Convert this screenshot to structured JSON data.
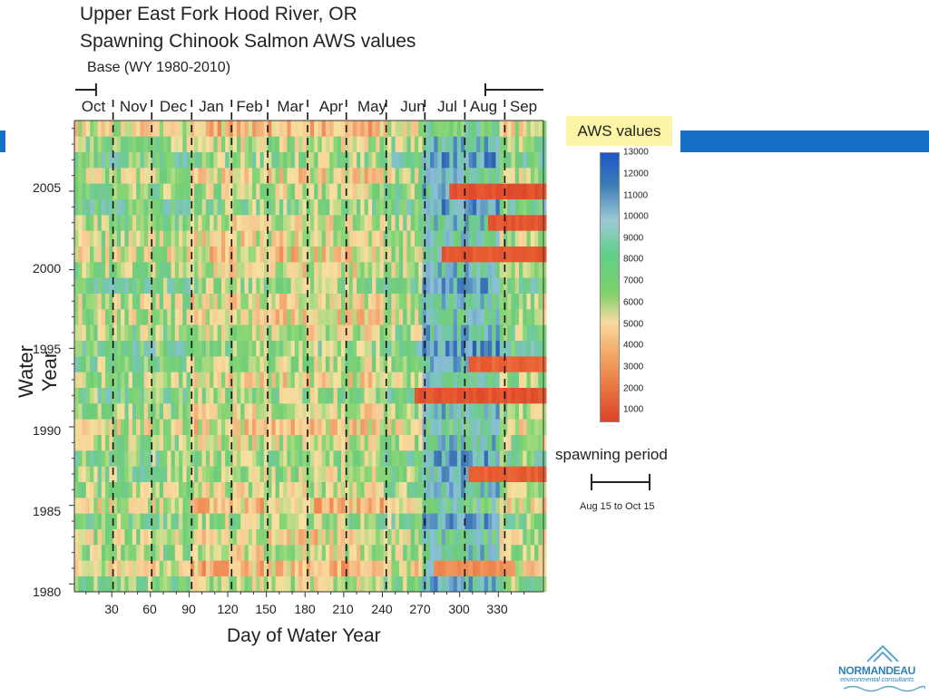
{
  "title_line1": "Upper East Fork Hood River, OR",
  "title_line2": "Spawning Chinook Salmon AWS values",
  "base_label": "Base (WY 1980-2010)",
  "months": [
    "Oct",
    "Nov",
    "Dec",
    "Jan",
    "Feb",
    "Mar",
    "Apr",
    "May",
    "Jun",
    "Jul",
    "Aug",
    "Sep"
  ],
  "colorbar": {
    "title": "AWS values",
    "ticks": [
      "13000",
      "12000",
      "11000",
      "10000",
      "9000",
      "8000",
      "7000",
      "6000",
      "5000",
      "4000",
      "3000",
      "2000",
      "1000"
    ]
  },
  "legend": {
    "label": "spawning period",
    "range": "Aug 15 to Oct 15"
  },
  "logo": {
    "name": "NORMANDEAU",
    "sub": "environmental consultants"
  },
  "colors": {
    "accent_bar": "#1670c9",
    "aws_title_bg": "#fdf5a6"
  },
  "chart_data": {
    "type": "heatmap",
    "xlabel": "Day of Water Year",
    "ylabel": "Water Year",
    "x_ticks": [
      30,
      60,
      90,
      120,
      150,
      180,
      210,
      240,
      270,
      300,
      330
    ],
    "y_ticks": [
      1980,
      1985,
      1990,
      1995,
      2000,
      2005
    ],
    "x_range": [
      1,
      365
    ],
    "y_range": [
      1980,
      2009
    ],
    "month_boundaries_day": [
      31,
      61,
      92,
      123,
      151,
      182,
      212,
      243,
      273,
      304,
      335
    ],
    "value_range": [
      1000,
      13000
    ],
    "colormap": "red-orange-yellow-green-blue",
    "spawning_period_days": [
      [
        1,
        15
      ],
      [
        319,
        365
      ]
    ],
    "low_value_cells": [
      {
        "year": 2005,
        "days": [
          290,
          365
        ],
        "value": 2000
      },
      {
        "year": 2003,
        "days": [
          320,
          365
        ],
        "value": 2200
      },
      {
        "year": 2001,
        "days": [
          285,
          365
        ],
        "value": 2300
      },
      {
        "year": 1994,
        "days": [
          305,
          365
        ],
        "value": 2600
      },
      {
        "year": 1992,
        "days": [
          265,
          365
        ],
        "value": 2100
      },
      {
        "year": 1987,
        "days": [
          305,
          365
        ],
        "value": 2500
      },
      {
        "year": 1981,
        "days": [
          280,
          340
        ],
        "value": 4000
      }
    ]
  }
}
